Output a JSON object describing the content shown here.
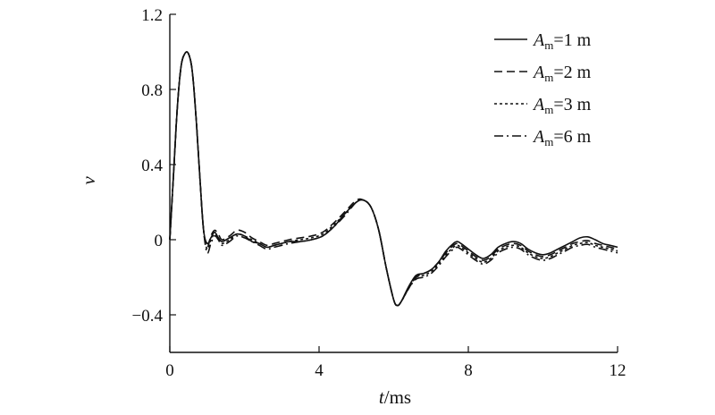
{
  "chart_data": {
    "type": "line",
    "title": "",
    "xlabel": {
      "symbol": "t",
      "unit": "/ms"
    },
    "ylabel": "v",
    "xlim": [
      0,
      12
    ],
    "ylim": [
      -0.6,
      1.2
    ],
    "x_ticks": [
      0,
      4,
      8,
      12
    ],
    "y_ticks": [
      -0.4,
      0,
      0.4,
      0.8,
      1.2
    ],
    "x_tick_labels": [
      "0",
      "4",
      "8",
      "12"
    ],
    "y_tick_labels": [
      "−0.4",
      "0",
      "0.4",
      "0.8",
      "1.2"
    ],
    "grid": false,
    "legend_position": "top-right",
    "series": [
      {
        "name": "A_m=1 m",
        "legend": {
          "symbol": "A",
          "subscript": "m",
          "rest": "=1 m"
        },
        "dash": "solid",
        "x": [
          0,
          0.1,
          0.2,
          0.3,
          0.4,
          0.5,
          0.6,
          0.7,
          0.8,
          0.9,
          1.0,
          1.1,
          1.2,
          1.3,
          1.4,
          1.6,
          1.8,
          2.0,
          2.2,
          2.4,
          2.6,
          2.8,
          3.0,
          3.2,
          3.5,
          3.8,
          4.1,
          4.4,
          4.7,
          5.0,
          5.2,
          5.4,
          5.6,
          5.8,
          6.0,
          6.1,
          6.2,
          6.4,
          6.6,
          6.8,
          7.0,
          7.2,
          7.4,
          7.6,
          7.7,
          7.8,
          8.0,
          8.2,
          8.4,
          8.6,
          8.8,
          9.0,
          9.2,
          9.4,
          9.6,
          9.8,
          10.0,
          10.2,
          10.4,
          10.6,
          10.8,
          11.0,
          11.2,
          11.4,
          11.6,
          11.8,
          12.0
        ],
        "y": [
          0.0,
          0.35,
          0.7,
          0.92,
          0.99,
          0.99,
          0.9,
          0.66,
          0.35,
          0.06,
          -0.02,
          0.01,
          0.04,
          0.01,
          -0.01,
          0.01,
          0.03,
          0.02,
          -0.01,
          -0.02,
          -0.04,
          -0.03,
          -0.02,
          -0.01,
          -0.01,
          0.0,
          0.02,
          0.07,
          0.14,
          0.2,
          0.21,
          0.17,
          0.05,
          -0.15,
          -0.32,
          -0.35,
          -0.33,
          -0.25,
          -0.19,
          -0.18,
          -0.16,
          -0.12,
          -0.06,
          -0.02,
          -0.01,
          -0.02,
          -0.05,
          -0.08,
          -0.1,
          -0.08,
          -0.04,
          -0.02,
          -0.01,
          -0.02,
          -0.05,
          -0.07,
          -0.08,
          -0.07,
          -0.05,
          -0.03,
          -0.01,
          0.01,
          0.015,
          0.0,
          -0.02,
          -0.03,
          -0.04
        ]
      },
      {
        "name": "A_m=2 m",
        "legend": {
          "symbol": "A",
          "subscript": "m",
          "rest": "=2 m"
        },
        "dash": "dashed",
        "x": [
          0,
          0.1,
          0.2,
          0.3,
          0.4,
          0.5,
          0.6,
          0.7,
          0.8,
          0.9,
          1.0,
          1.1,
          1.2,
          1.3,
          1.4,
          1.6,
          1.8,
          2.0,
          2.2,
          2.4,
          2.6,
          2.8,
          3.0,
          3.2,
          3.5,
          3.8,
          4.1,
          4.4,
          4.7,
          5.0,
          5.2,
          5.4,
          5.6,
          5.8,
          6.0,
          6.1,
          6.2,
          6.4,
          6.6,
          6.8,
          7.0,
          7.2,
          7.4,
          7.6,
          7.7,
          7.8,
          8.0,
          8.2,
          8.4,
          8.6,
          8.8,
          9.0,
          9.2,
          9.4,
          9.6,
          9.8,
          10.0,
          10.2,
          10.4,
          10.6,
          10.8,
          11.0,
          11.2,
          11.4,
          11.6,
          11.8,
          12.0
        ],
        "y": [
          0.0,
          0.35,
          0.7,
          0.92,
          0.99,
          0.99,
          0.9,
          0.66,
          0.35,
          0.06,
          -0.04,
          0.02,
          0.05,
          0.03,
          0.0,
          0.02,
          0.05,
          0.04,
          0.01,
          -0.01,
          -0.03,
          -0.02,
          -0.01,
          0.0,
          0.01,
          0.02,
          0.04,
          0.09,
          0.15,
          0.21,
          0.21,
          0.17,
          0.05,
          -0.15,
          -0.32,
          -0.35,
          -0.33,
          -0.26,
          -0.2,
          -0.18,
          -0.16,
          -0.12,
          -0.07,
          -0.03,
          -0.02,
          -0.03,
          -0.06,
          -0.09,
          -0.11,
          -0.09,
          -0.05,
          -0.03,
          -0.02,
          -0.03,
          -0.06,
          -0.08,
          -0.09,
          -0.08,
          -0.06,
          -0.04,
          -0.02,
          -0.01,
          -0.005,
          -0.02,
          -0.03,
          -0.04,
          -0.05
        ]
      },
      {
        "name": "A_m=3 m",
        "legend": {
          "symbol": "A",
          "subscript": "m",
          "rest": "=3 m"
        },
        "dash": "dotted",
        "x": [
          0,
          0.1,
          0.2,
          0.3,
          0.4,
          0.5,
          0.6,
          0.7,
          0.8,
          0.9,
          1.0,
          1.1,
          1.2,
          1.3,
          1.4,
          1.6,
          1.8,
          2.0,
          2.2,
          2.4,
          2.6,
          2.8,
          3.0,
          3.2,
          3.5,
          3.8,
          4.1,
          4.4,
          4.7,
          5.0,
          5.2,
          5.4,
          5.6,
          5.8,
          6.0,
          6.1,
          6.2,
          6.4,
          6.6,
          6.8,
          7.0,
          7.2,
          7.4,
          7.6,
          7.7,
          7.8,
          8.0,
          8.2,
          8.4,
          8.6,
          8.8,
          9.0,
          9.2,
          9.4,
          9.6,
          9.8,
          10.0,
          10.2,
          10.4,
          10.6,
          10.8,
          11.0,
          11.2,
          11.4,
          11.6,
          11.8,
          12.0
        ],
        "y": [
          0.0,
          0.35,
          0.7,
          0.92,
          0.99,
          0.99,
          0.9,
          0.66,
          0.35,
          0.06,
          -0.05,
          0.0,
          0.03,
          0.01,
          -0.02,
          0.0,
          0.03,
          0.02,
          0.0,
          -0.02,
          -0.04,
          -0.03,
          -0.02,
          -0.01,
          0.0,
          0.01,
          0.03,
          0.08,
          0.14,
          0.2,
          0.21,
          0.17,
          0.05,
          -0.15,
          -0.32,
          -0.35,
          -0.33,
          -0.26,
          -0.2,
          -0.19,
          -0.17,
          -0.13,
          -0.08,
          -0.04,
          -0.03,
          -0.04,
          -0.07,
          -0.1,
          -0.12,
          -0.1,
          -0.06,
          -0.04,
          -0.03,
          -0.04,
          -0.07,
          -0.09,
          -0.1,
          -0.09,
          -0.07,
          -0.05,
          -0.03,
          -0.02,
          -0.015,
          -0.03,
          -0.04,
          -0.05,
          -0.06
        ]
      },
      {
        "name": "A_m=6 m",
        "legend": {
          "symbol": "A",
          "subscript": "m",
          "rest": "=6 m"
        },
        "dash": "dashdot",
        "x": [
          0,
          0.1,
          0.2,
          0.3,
          0.4,
          0.5,
          0.6,
          0.7,
          0.8,
          0.9,
          1.0,
          1.1,
          1.2,
          1.3,
          1.4,
          1.6,
          1.8,
          2.0,
          2.2,
          2.4,
          2.6,
          2.8,
          3.0,
          3.2,
          3.5,
          3.8,
          4.1,
          4.4,
          4.7,
          5.0,
          5.2,
          5.4,
          5.6,
          5.8,
          6.0,
          6.1,
          6.2,
          6.4,
          6.6,
          6.8,
          7.0,
          7.2,
          7.4,
          7.6,
          7.7,
          7.8,
          8.0,
          8.2,
          8.4,
          8.6,
          8.8,
          9.0,
          9.2,
          9.4,
          9.6,
          9.8,
          10.0,
          10.2,
          10.4,
          10.6,
          10.8,
          11.0,
          11.2,
          11.4,
          11.6,
          11.8,
          12.0
        ],
        "y": [
          0.0,
          0.35,
          0.7,
          0.92,
          0.99,
          0.99,
          0.9,
          0.66,
          0.35,
          0.06,
          -0.07,
          -0.02,
          0.02,
          0.0,
          -0.03,
          -0.01,
          0.02,
          0.01,
          -0.01,
          -0.03,
          -0.05,
          -0.04,
          -0.03,
          -0.02,
          -0.01,
          0.0,
          0.02,
          0.07,
          0.13,
          0.2,
          0.21,
          0.17,
          0.05,
          -0.15,
          -0.32,
          -0.35,
          -0.33,
          -0.26,
          -0.21,
          -0.2,
          -0.18,
          -0.14,
          -0.09,
          -0.05,
          -0.04,
          -0.05,
          -0.08,
          -0.11,
          -0.13,
          -0.11,
          -0.07,
          -0.05,
          -0.04,
          -0.05,
          -0.08,
          -0.1,
          -0.11,
          -0.1,
          -0.08,
          -0.06,
          -0.04,
          -0.03,
          -0.025,
          -0.04,
          -0.05,
          -0.06,
          -0.07
        ]
      }
    ]
  }
}
